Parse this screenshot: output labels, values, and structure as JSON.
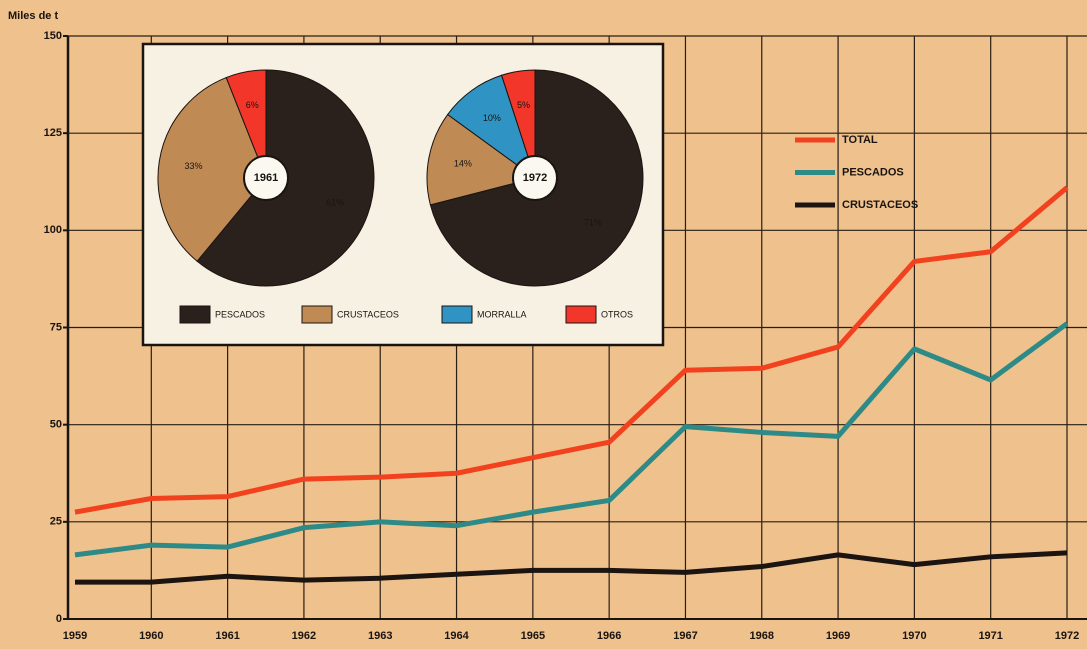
{
  "chart_data": [
    {
      "type": "line",
      "y_label": "Miles de t",
      "categories": [
        "1959",
        "1960",
        "1961",
        "1962",
        "1963",
        "1964",
        "1965",
        "1966",
        "1967",
        "1968",
        "1969",
        "1970",
        "1971",
        "1972"
      ],
      "series": [
        {
          "name": "TOTAL",
          "color": "#f2411f",
          "values": [
            27.5,
            31,
            31.5,
            36,
            36.5,
            37.5,
            41.5,
            45.5,
            64,
            64.5,
            70,
            92,
            94.5,
            111
          ]
        },
        {
          "name": "PESCADOS",
          "color": "#2e8a86",
          "values": [
            16.5,
            19,
            18.5,
            23.5,
            25,
            24,
            27.5,
            30.5,
            49.5,
            48,
            47,
            69.5,
            61.5,
            76
          ]
        },
        {
          "name": "CRUSTACEOS",
          "color": "#1c1410",
          "values": [
            9.5,
            9.5,
            11,
            10,
            10.5,
            11.5,
            12.5,
            12.5,
            12,
            13.5,
            16.5,
            14,
            16,
            17
          ]
        }
      ],
      "ylim": [
        0,
        150
      ],
      "yticks": [
        0,
        25,
        50,
        75,
        100,
        125,
        150
      ],
      "grid": true
    },
    {
      "type": "pie",
      "title": "1961",
      "values": [
        61,
        33,
        null,
        6
      ],
      "value_labels": [
        "61%",
        "33%",
        null,
        "6%"
      ]
    },
    {
      "type": "pie",
      "title": "1972",
      "values": [
        71,
        14,
        10,
        5
      ],
      "value_labels": [
        "71%",
        "14%",
        "10%",
        "5%"
      ]
    }
  ],
  "pie_legend": {
    "categories": [
      "PESCADOS",
      "CRUSTACEOS",
      "MORRALLA",
      "OTROS"
    ],
    "colors": [
      "#2a211d",
      "#c08a55",
      "#2f93c4",
      "#f2362a"
    ]
  }
}
